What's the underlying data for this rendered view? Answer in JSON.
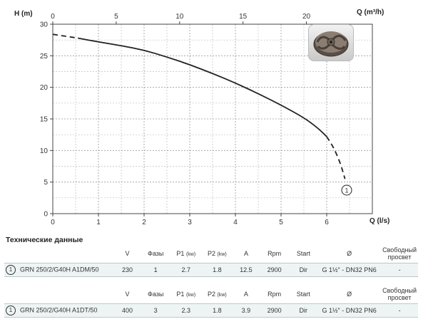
{
  "chart_data": {
    "type": "line",
    "x_label": "Q (l/s)",
    "y_label": "H (m)",
    "x2_label": "Q (m³/h)",
    "xlim": [
      0,
      7
    ],
    "ylim": [
      0,
      30
    ],
    "x2lim": [
      0,
      25.2
    ],
    "x_ticks": [
      0,
      1,
      2,
      3,
      4,
      5,
      6
    ],
    "y_ticks": [
      0,
      5,
      10,
      15,
      20,
      25,
      30
    ],
    "x2_ticks": [
      0,
      5,
      10,
      15,
      20
    ],
    "grid": true,
    "curve_label": "1",
    "series": [
      {
        "curve_id": "1",
        "dashed_start": [
          [
            0,
            28.4
          ],
          [
            0.55,
            27.8
          ]
        ],
        "solid": [
          [
            0.55,
            27.8
          ],
          [
            1,
            27.2
          ],
          [
            1.5,
            26.6
          ],
          [
            2,
            25.9
          ],
          [
            2.5,
            24.8
          ],
          [
            3,
            23.6
          ],
          [
            3.5,
            22.2
          ],
          [
            4,
            20.7
          ],
          [
            4.5,
            19.0
          ],
          [
            5,
            17.2
          ],
          [
            5.5,
            15.2
          ],
          [
            5.8,
            13.6
          ],
          [
            6.0,
            12.2
          ]
        ],
        "dashed_end": [
          [
            6.0,
            12.2
          ],
          [
            6.15,
            10.5
          ],
          [
            6.3,
            8.0
          ],
          [
            6.4,
            5.5
          ]
        ]
      }
    ]
  },
  "specs": {
    "title": "Технические данные",
    "models": [
      {
        "num": "1",
        "name": "GRN 250/2/G40H A1DM/50",
        "headers": {
          "v": "V",
          "phases": "Фазы",
          "p1": "P1",
          "p2": "P2",
          "kw": "(kw)",
          "a": "A",
          "rpm": "Rpm",
          "start": "Start",
          "diam": "Ø",
          "free1": "Свободный",
          "free2": "просвет"
        },
        "v": "230",
        "phases": "1",
        "p1": "2.7",
        "p2": "1.8",
        "a": "12.5",
        "rpm": "2900",
        "start": "Dir",
        "conn": "G 1½\" - DN32 PN6",
        "free": "-"
      },
      {
        "num": "1",
        "name": "GRN 250/2/G40H A1DT/50",
        "headers": {
          "v": "V",
          "phases": "Фазы",
          "p1": "P1",
          "p2": "P2",
          "kw": "(kw)",
          "a": "A",
          "rpm": "Rpm",
          "start": "Start",
          "diam": "Ø",
          "free1": "Свободный",
          "free2": "просвет"
        },
        "v": "400",
        "phases": "3",
        "p1": "2.3",
        "p2": "1.8",
        "a": "3.9",
        "rpm": "2900",
        "start": "Dir",
        "conn": "G 1½\" - DN32 PN6",
        "free": "-"
      }
    ]
  }
}
